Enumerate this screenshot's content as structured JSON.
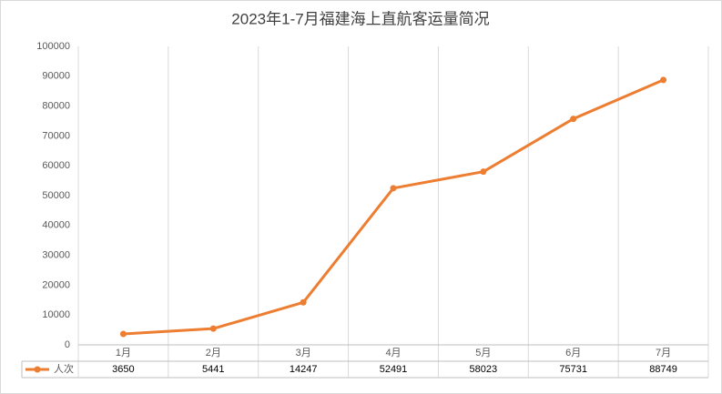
{
  "chart_data": {
    "type": "line",
    "title": "2023年1-7月福建海上直航客运量简况",
    "categories": [
      "1月",
      "2月",
      "3月",
      "4月",
      "5月",
      "6月",
      "7月"
    ],
    "series": [
      {
        "name": "人次",
        "color": "#ed7d31",
        "values": [
          3650,
          5441,
          14247,
          52491,
          58023,
          75731,
          88749
        ]
      }
    ],
    "ylim": [
      0,
      100000
    ],
    "yticks": [
      0,
      10000,
      20000,
      30000,
      40000,
      50000,
      60000,
      70000,
      80000,
      90000,
      100000
    ],
    "data_table": true
  }
}
